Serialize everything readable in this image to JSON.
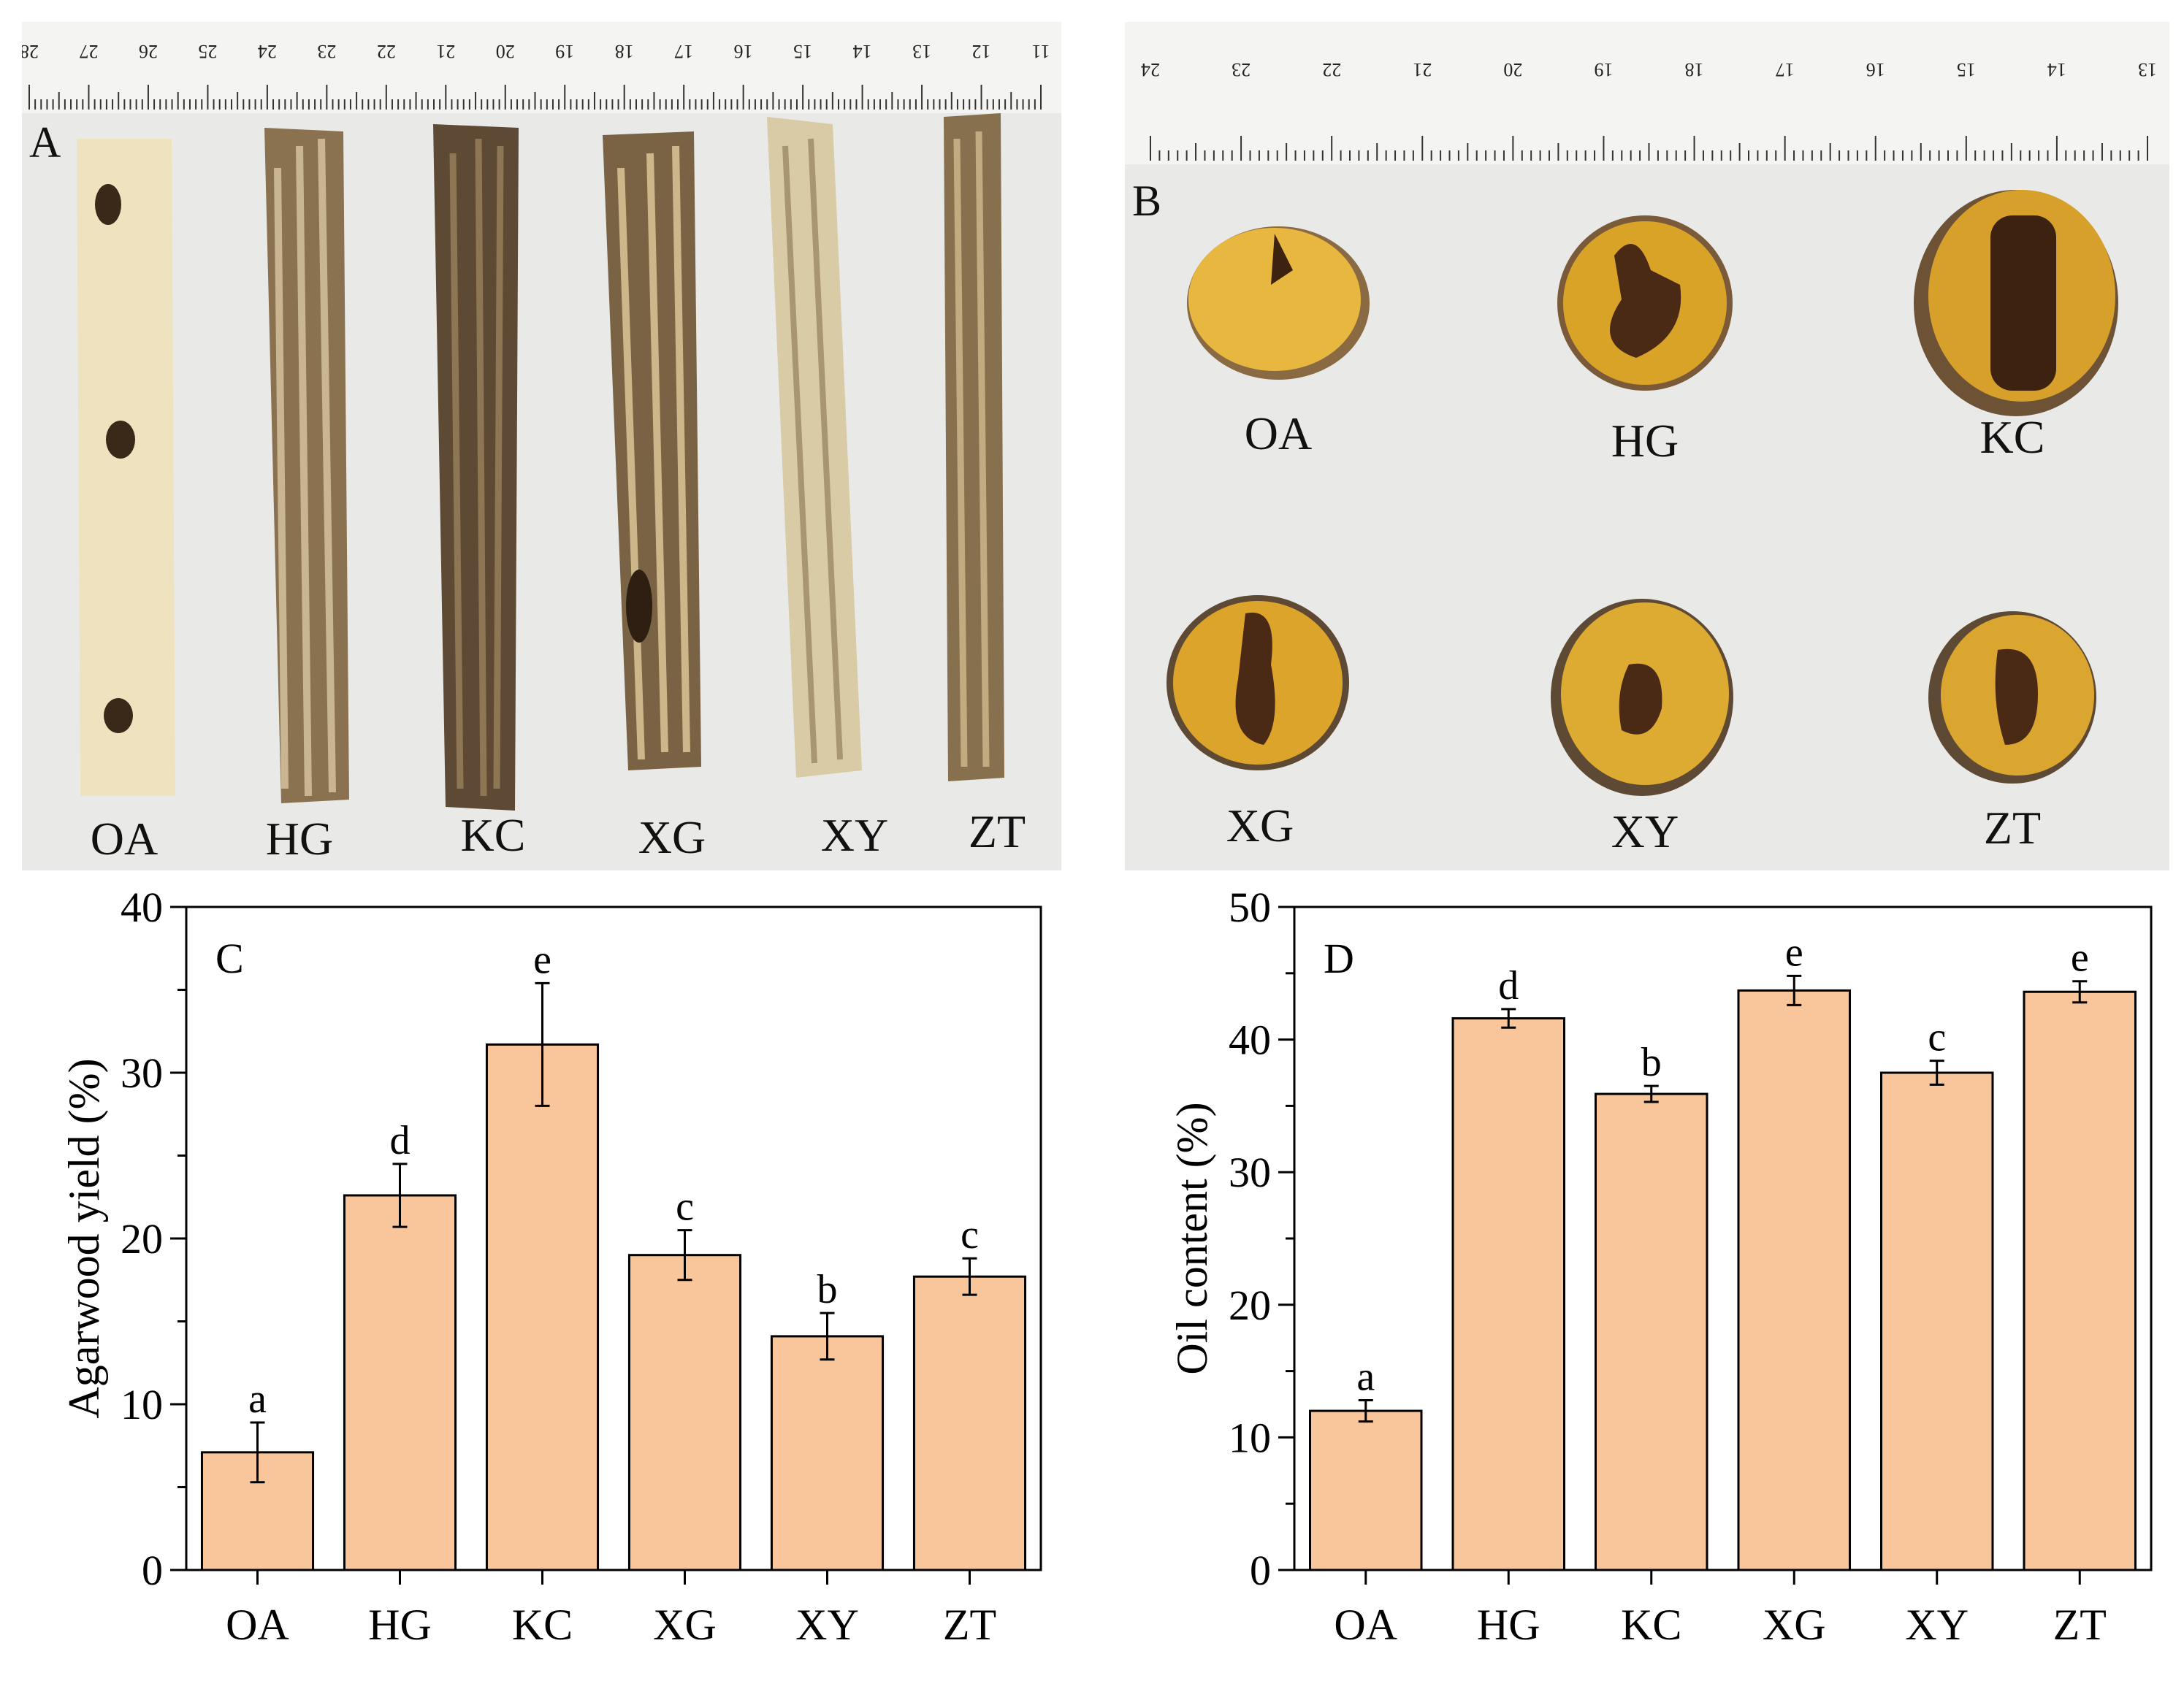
{
  "panel_a": {
    "letter": "A",
    "ruler_numbers": [
      "28",
      "27",
      "26",
      "25",
      "24",
      "23",
      "22",
      "21",
      "20",
      "19",
      "18",
      "17",
      "16",
      "15",
      "14",
      "13",
      "12",
      "11"
    ],
    "sample_labels": [
      "OA",
      "HG",
      "KC",
      "XG",
      "XY",
      "ZT"
    ]
  },
  "panel_b": {
    "letter": "B",
    "ruler_numbers": [
      "24",
      "23",
      "22",
      "21",
      "20",
      "19",
      "18",
      "17",
      "16",
      "15",
      "14",
      "13"
    ],
    "sample_labels": [
      "OA",
      "HG",
      "KC",
      "XG",
      "XY",
      "ZT"
    ]
  },
  "colors": {
    "bar_fill": "#f9c69c",
    "bar_stroke": "#000000",
    "photo_bg": "#e9e9e7",
    "ruler": "#f4f4f2",
    "wood_light": "#efe3bf",
    "wood_dark": "#5a4630",
    "cross_yellow": "#d9a328",
    "cross_dark": "#3d2210"
  },
  "chart_data": [
    {
      "type": "bar",
      "panel_letter": "C",
      "categories": [
        "OA",
        "HG",
        "KC",
        "XG",
        "XY",
        "ZT"
      ],
      "values": [
        7.1,
        22.6,
        31.7,
        19.0,
        14.1,
        17.7
      ],
      "errors": [
        1.8,
        1.9,
        3.7,
        1.5,
        1.4,
        1.1
      ],
      "significance": [
        "a",
        "d",
        "e",
        "c",
        "b",
        "c"
      ],
      "xlabel": "",
      "ylabel": "Agarwood yield (%)",
      "ylim": [
        0,
        40
      ],
      "yticks": [
        0,
        10,
        20,
        30,
        40
      ],
      "minor_step": 5
    },
    {
      "type": "bar",
      "panel_letter": "D",
      "categories": [
        "OA",
        "HG",
        "KC",
        "XG",
        "XY",
        "ZT"
      ],
      "values": [
        12.0,
        41.6,
        35.9,
        43.7,
        37.5,
        43.6
      ],
      "errors": [
        0.8,
        0.7,
        0.6,
        1.1,
        0.9,
        0.8
      ],
      "significance": [
        "a",
        "d",
        "b",
        "e",
        "c",
        "e"
      ],
      "xlabel": "",
      "ylabel": "Oil content (%)",
      "ylim": [
        0,
        50
      ],
      "yticks": [
        0,
        10,
        20,
        30,
        40,
        50
      ],
      "minor_step": 5
    }
  ]
}
